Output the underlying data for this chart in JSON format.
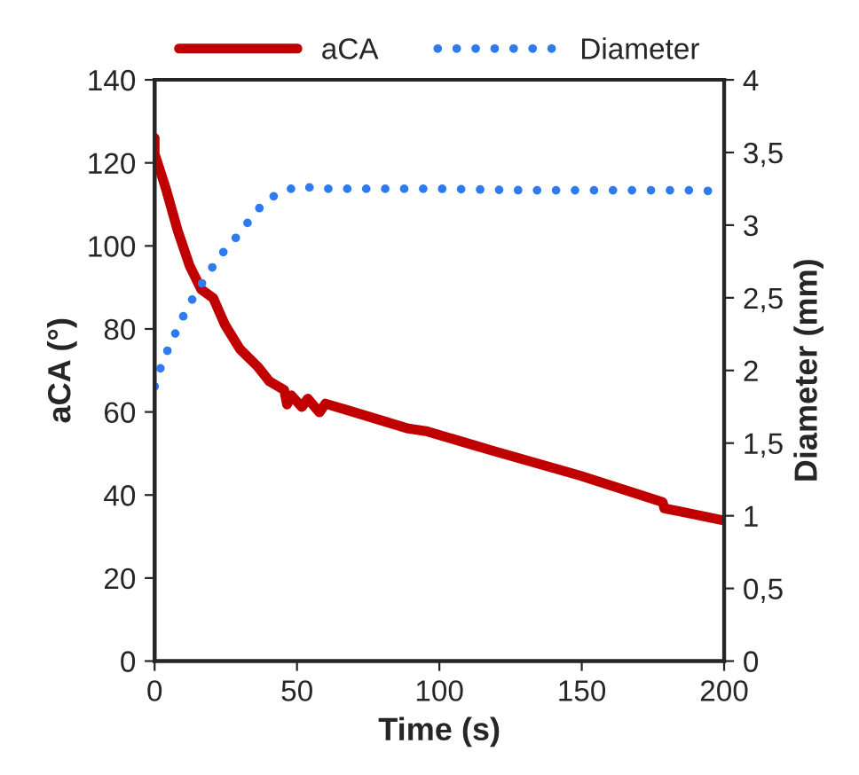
{
  "chart_data": {
    "type": "line",
    "xlabel": "Time (s)",
    "ylabel": "aCA (°)",
    "y2label": "Diameter (mm)",
    "xlim": [
      0,
      200
    ],
    "xticks": [
      0,
      50,
      100,
      150,
      200
    ],
    "ylim": [
      0,
      140
    ],
    "yticks": [
      0,
      20,
      40,
      60,
      80,
      100,
      120,
      140
    ],
    "y2lim": [
      0,
      4
    ],
    "y2ticks": [
      0,
      {
        "value": 0.5,
        "label": "0,5"
      },
      1,
      {
        "value": 1.5,
        "label": "1,5"
      },
      2,
      {
        "value": 2.5,
        "label": "2,5"
      },
      3,
      {
        "value": 3.5,
        "label": "3,5"
      },
      4
    ],
    "legend": "top",
    "grid": false,
    "series": [
      {
        "name": "aCA",
        "color": "#c00000",
        "line_style": "solid",
        "x": [
          0,
          0,
          4,
          8.1,
          12.3,
          16.4,
          20.6,
          24.7,
          29.9,
          36.1,
          40.3,
          45.5,
          46.5,
          48,
          51.7,
          53.8,
          57.9,
          60,
          68.3,
          89.1,
          95.3,
          120,
          149.3,
          178.4,
          179,
          199
        ],
        "values": [
          126,
          122.2,
          113.7,
          103.7,
          95.2,
          89.5,
          87.4,
          81,
          75.2,
          71,
          67.4,
          65.3,
          61.8,
          64,
          61.2,
          63.2,
          59.9,
          62,
          60.3,
          56,
          55.4,
          50.4,
          44.7,
          38.3,
          36.8,
          34
        ]
      },
      {
        "name": "Diameter",
        "color": "#2e7bf0",
        "line_style": "dotted",
        "axis": "y2",
        "x": [
          0,
          2.3,
          5,
          8.1,
          11.2,
          15,
          20.6,
          22,
          26.8,
          32,
          36.5,
          39,
          45.9,
          51.7,
          56.7,
          62.1,
          69.4,
          100,
          130,
          160,
          190,
          200
        ],
        "values": [
          1.89,
          2.03,
          2.16,
          2.29,
          2.42,
          2.55,
          2.72,
          2.77,
          2.87,
          3.0,
          3.11,
          3.17,
          3.24,
          3.27,
          3.25,
          3.25,
          3.25,
          3.25,
          3.24,
          3.24,
          3.24,
          3.23
        ]
      }
    ]
  }
}
